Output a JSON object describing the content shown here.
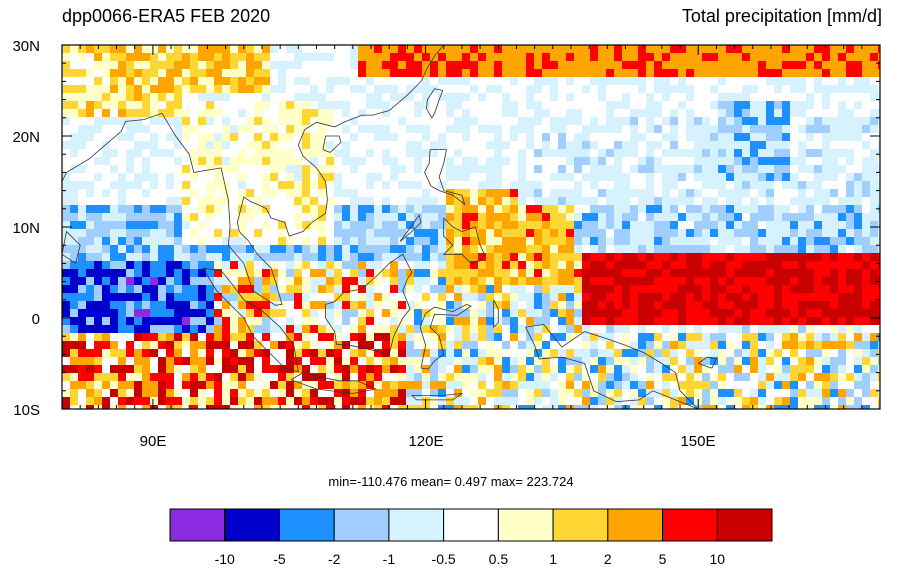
{
  "figure": {
    "title_left": "dpp0066-ERA5 FEB 2020",
    "title_right": "Total precipitation [mm/d]",
    "stats_text": "min=-110.476  mean=   0.497  max= 223.724"
  },
  "map": {
    "lon_range": [
      80,
      170
    ],
    "lat_range": [
      -10,
      30
    ],
    "x_tick_labels": [
      "90E",
      "120E",
      "150E"
    ],
    "x_tick_values": [
      90,
      120,
      150
    ],
    "y_tick_labels": [
      "30N",
      "20N",
      "10N",
      "0",
      "10S"
    ],
    "y_tick_values": [
      30,
      20,
      10,
      0,
      -10
    ],
    "field": "difference of total precipitation (dpp0066 minus ERA5), Feb 2020"
  },
  "colorbar": {
    "colors": [
      "#8a2be2",
      "#0000cd",
      "#1e90ff",
      "#a0cfff",
      "#d6f2ff",
      "#ffffff",
      "#ffffc8",
      "#ffd633",
      "#ffa500",
      "#ff0000",
      "#c80000"
    ],
    "labels": [
      "-10",
      "-5",
      "-2",
      "-1",
      "-0.5",
      "0.5",
      "1",
      "2",
      "5",
      "10"
    ]
  }
}
